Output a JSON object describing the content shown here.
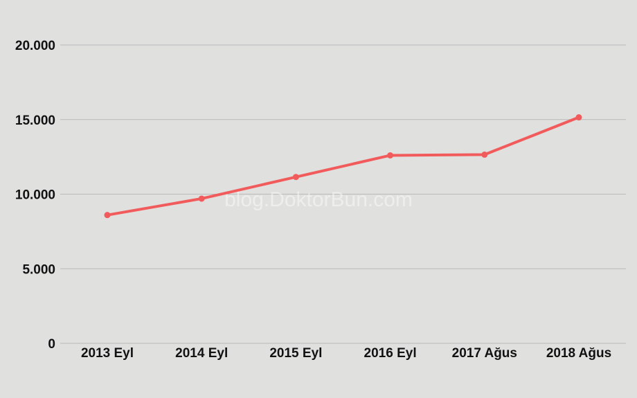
{
  "chart_data": {
    "type": "line",
    "title": "",
    "xlabel": "",
    "ylabel": "",
    "categories": [
      "2013 Eyl",
      "2014 Eyl",
      "2015 Eyl",
      "2016 Eyl",
      "2017 Ağus",
      "2018 Ağus"
    ],
    "series": [
      {
        "values": [
          8600,
          9700,
          11150,
          12600,
          12650,
          15150
        ],
        "color": "#f15b5b"
      }
    ],
    "ylim": [
      0,
      20000
    ],
    "yticks": [
      0,
      5000,
      10000,
      15000,
      20000
    ],
    "ytick_labels": [
      "0",
      "5.000",
      "10.000",
      "15.000",
      "20.000"
    ],
    "grid": true,
    "legend": "none",
    "watermark": "blog.DoktorBun.com",
    "colors": {
      "background": "#e0e0df",
      "grid": "#b9b9b9",
      "line": "#f15b5b",
      "text": "#111111"
    }
  }
}
